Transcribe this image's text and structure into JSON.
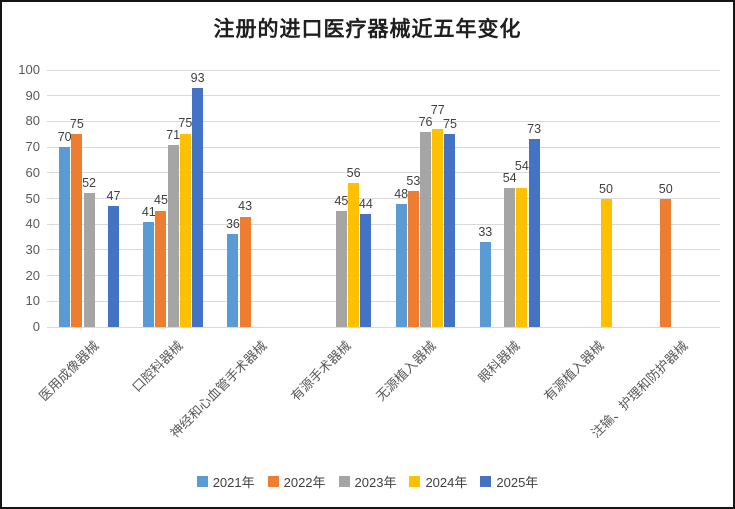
{
  "window": {
    "background": "#FFFFFF",
    "border_color": "#141414"
  },
  "chart_data": {
    "type": "bar",
    "title": "注册的进口医疗器械近五年变化",
    "categories": [
      "医用成像器械",
      "口腔科器械",
      "神经和心血管手术器械",
      "有源手术器械",
      "无源植入器械",
      "眼科器械",
      "有源植入器械",
      "注输、护理和防护器械"
    ],
    "series": [
      {
        "name": "2021年",
        "color": "#5B9BD5",
        "values": [
          70,
          41,
          36,
          null,
          48,
          33,
          null,
          null
        ]
      },
      {
        "name": "2022年",
        "color": "#ED7D31",
        "values": [
          75,
          45,
          43,
          null,
          53,
          null,
          null,
          50
        ]
      },
      {
        "name": "2023年",
        "color": "#A5A5A5",
        "values": [
          52,
          71,
          null,
          45,
          76,
          54,
          null,
          null
        ]
      },
      {
        "name": "2024年",
        "color": "#FFC000",
        "values": [
          null,
          75,
          null,
          56,
          77,
          54,
          50,
          null
        ]
      },
      {
        "name": "2025年",
        "color": "#4472C4",
        "values": [
          47,
          93,
          null,
          44,
          75,
          73,
          null,
          null
        ]
      }
    ],
    "ylim": [
      0,
      100
    ],
    "yticks": [
      0,
      10,
      20,
      30,
      40,
      50,
      60,
      70,
      80,
      90,
      100
    ],
    "grid": true,
    "gridline_color": "#D9D9D9",
    "data_labels": true,
    "data_label_color": "#404040",
    "axis_tick_color": "#595959",
    "title_color": "#1F1F1F",
    "legend_position": "bottom"
  }
}
